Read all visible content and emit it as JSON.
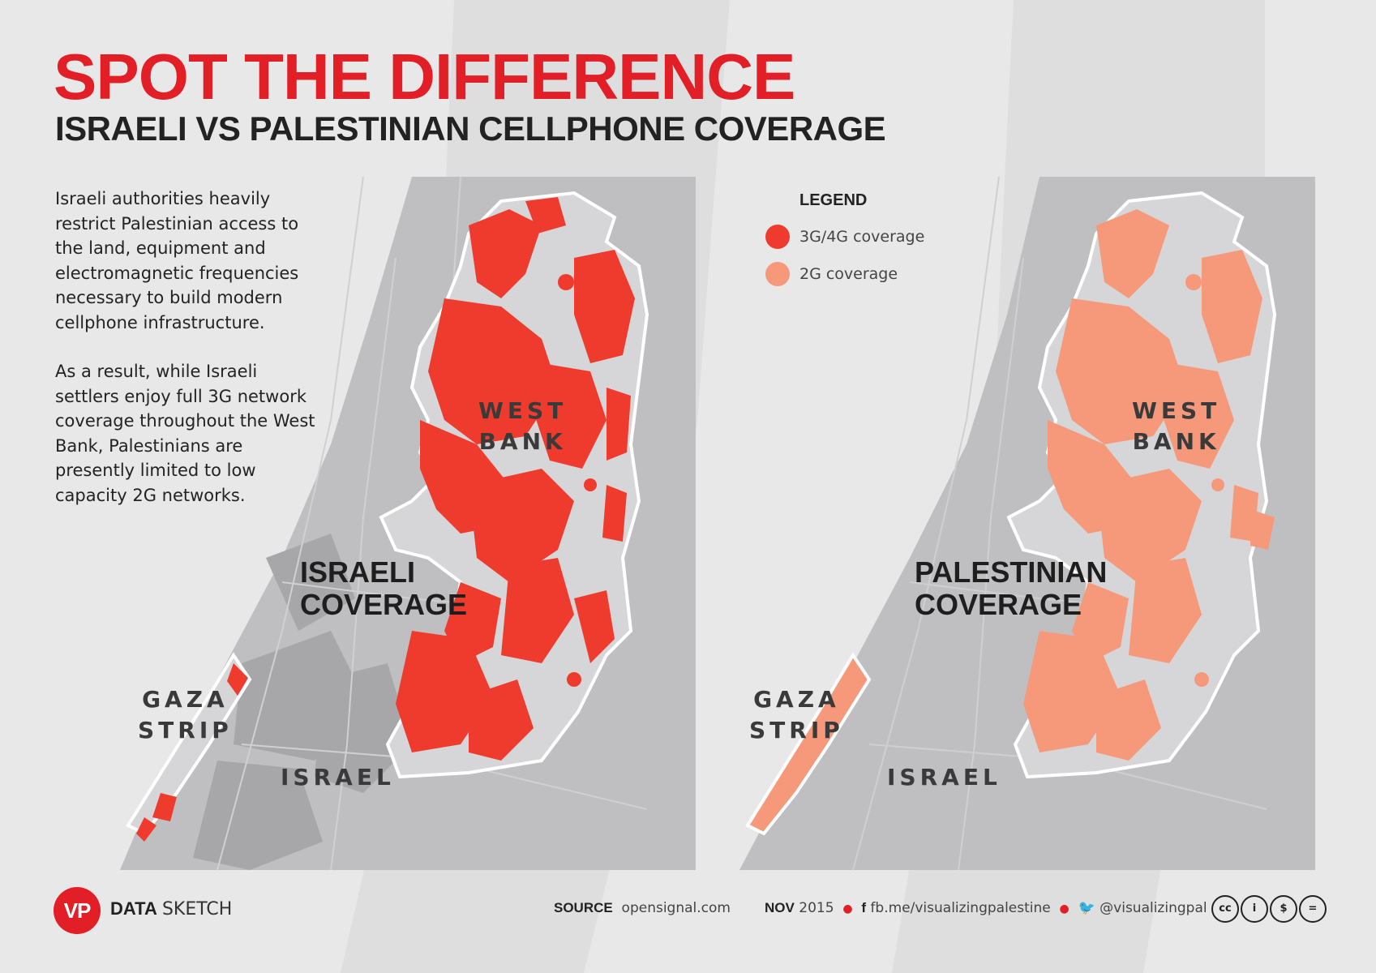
{
  "title": "SPOT THE DIFFERENCE",
  "subtitle": "ISRAELI VS PALESTINIAN CELLPHONE COVERAGE",
  "intro": {
    "paragraph1": "Israeli authorities heavily restrict Palestinian access to the land, equipment and electromagnetic frequencies necessary to build modern cellphone infrastructure.",
    "paragraph2": "As a result, while Israeli settlers enjoy full 3G network coverage throughout the West Bank, Palestinians are presently limited to low capacity 2G networks."
  },
  "legend": {
    "title": "LEGEND",
    "items": [
      {
        "label": "3G/4G coverage",
        "color": "#ee3b2d"
      },
      {
        "label": "2G coverage",
        "color": "#f5997a"
      }
    ]
  },
  "maps": {
    "left": {
      "coverage_label_1": "ISRAELI",
      "coverage_label_2": "COVERAGE",
      "west_bank_1": "WEST",
      "west_bank_2": "BANK",
      "gaza_1": "GAZA",
      "gaza_2": "STRIP",
      "israel": "ISRAEL",
      "coverage_color": "#ee3b2d"
    },
    "right": {
      "coverage_label_1": "PALESTINIAN",
      "coverage_label_2": "COVERAGE",
      "west_bank_1": "WEST",
      "west_bank_2": "BANK",
      "gaza_1": "GAZA",
      "gaza_2": "STRIP",
      "israel": "ISRAEL",
      "coverage_color": "#f5997a"
    }
  },
  "footer": {
    "logo": "VP",
    "brand_bold": "DATA",
    "brand_light": "SKETCH",
    "source_label": "SOURCE",
    "source_value": "opensignal.com",
    "date_bold": "NOV",
    "date_light": "2015",
    "facebook": "fb.me/visualizingpalestine",
    "twitter": "@visualizingpal",
    "license_icons": [
      "cc",
      "by",
      "nc",
      "nd"
    ]
  }
}
